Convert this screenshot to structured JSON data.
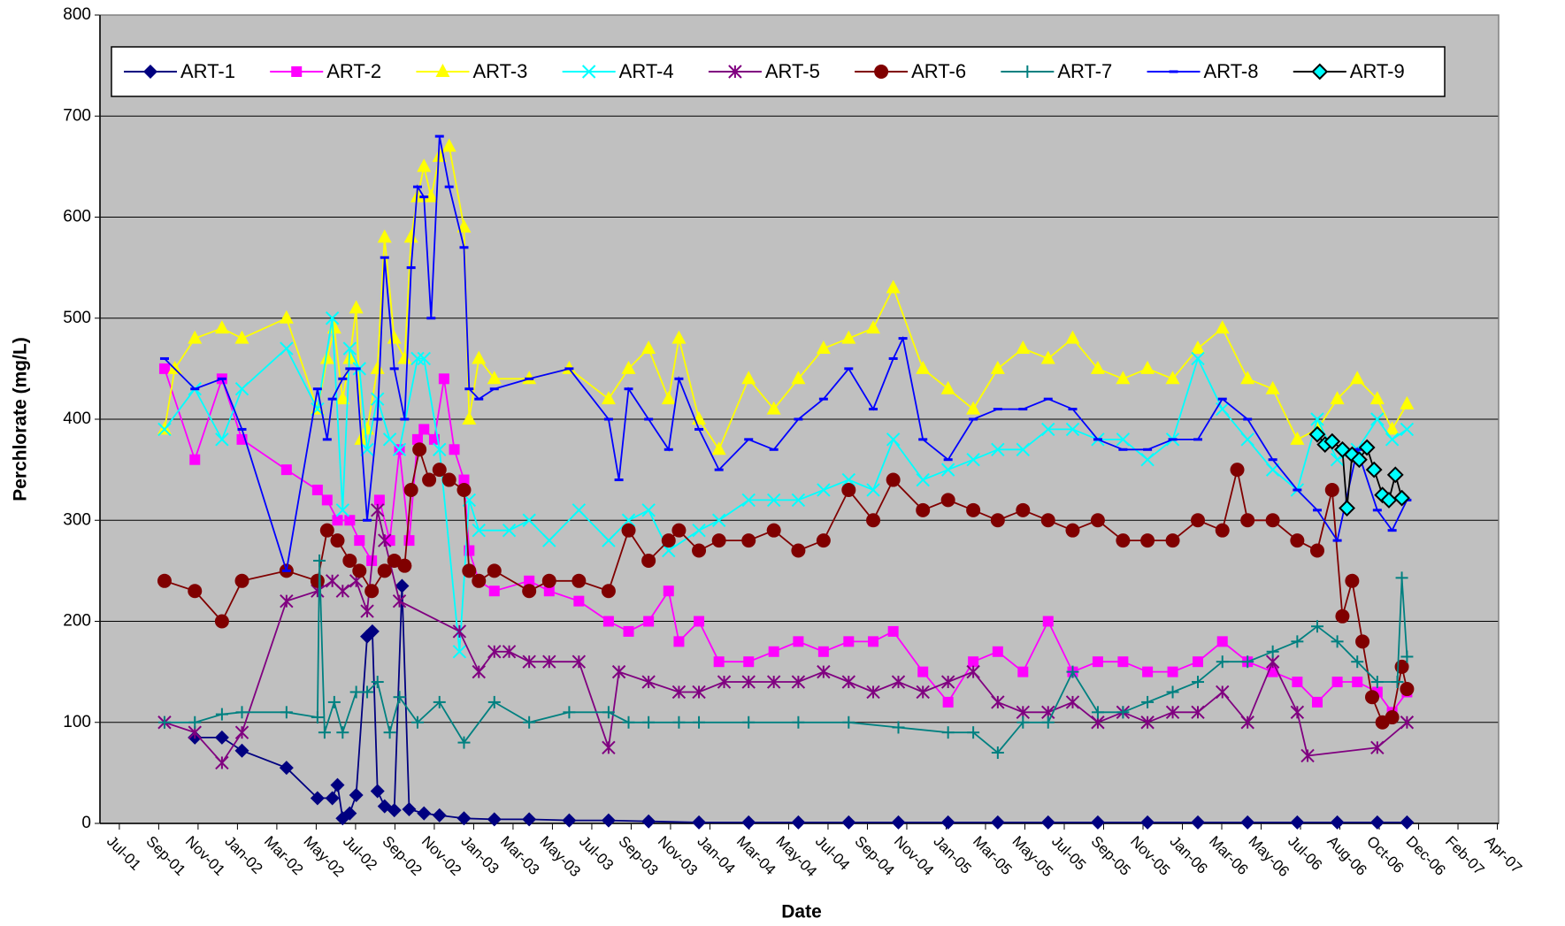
{
  "chart_data": {
    "type": "line",
    "x_label": "Date",
    "y_label": "Perchlorate (mg/L)",
    "ylim": [
      0,
      800
    ],
    "yticks": [
      0,
      100,
      200,
      300,
      400,
      500,
      600,
      700,
      800
    ],
    "xlim": [
      37043,
      39210
    ],
    "xticks": [
      {
        "value": 37073,
        "label": "Jul-01"
      },
      {
        "value": 37134,
        "label": "Sep-01"
      },
      {
        "value": 37195,
        "label": "Nov-01"
      },
      {
        "value": 37256,
        "label": "Jan-02"
      },
      {
        "value": 37317,
        "label": "Mar-02"
      },
      {
        "value": 37378,
        "label": "May-02"
      },
      {
        "value": 37439,
        "label": "Jul-02"
      },
      {
        "value": 37500,
        "label": "Sep-02"
      },
      {
        "value": 37561,
        "label": "Nov-02"
      },
      {
        "value": 37622,
        "label": "Jan-03"
      },
      {
        "value": 37683,
        "label": "Mar-03"
      },
      {
        "value": 37744,
        "label": "May-03"
      },
      {
        "value": 37805,
        "label": "Jul-03"
      },
      {
        "value": 37866,
        "label": "Sep-03"
      },
      {
        "value": 37927,
        "label": "Nov-03"
      },
      {
        "value": 37988,
        "label": "Jan-04"
      },
      {
        "value": 38049,
        "label": "Mar-04"
      },
      {
        "value": 38110,
        "label": "May-04"
      },
      {
        "value": 38171,
        "label": "Jul-04"
      },
      {
        "value": 38232,
        "label": "Sep-04"
      },
      {
        "value": 38293,
        "label": "Nov-04"
      },
      {
        "value": 38354,
        "label": "Jan-05"
      },
      {
        "value": 38415,
        "label": "Mar-05"
      },
      {
        "value": 38476,
        "label": "May-05"
      },
      {
        "value": 38537,
        "label": "Jul-05"
      },
      {
        "value": 38598,
        "label": "Sep-05"
      },
      {
        "value": 38659,
        "label": "Nov-05"
      },
      {
        "value": 38720,
        "label": "Jan-06"
      },
      {
        "value": 38781,
        "label": "Mar-06"
      },
      {
        "value": 38842,
        "label": "May-06"
      },
      {
        "value": 38903,
        "label": "Jul-06"
      },
      {
        "value": 38964,
        "label": "Aug-06"
      },
      {
        "value": 39025,
        "label": "Oct-06"
      },
      {
        "value": 39086,
        "label": "Dec-06"
      },
      {
        "value": 39147,
        "label": "Feb-07"
      },
      {
        "value": 39208,
        "label": "Apr-07"
      }
    ],
    "grid": true,
    "legend": "top",
    "plot_background": "#c0c0c0",
    "series": [
      {
        "name": "ART-1",
        "color": "#000080",
        "marker": "diamond",
        "x": [
          37190,
          37232,
          37263,
          37332,
          37380,
          37403,
          37411,
          37419,
          37430,
          37440,
          37457,
          37465,
          37473,
          37484,
          37499,
          37511,
          37522,
          37545,
          37569,
          37607,
          37654,
          37708,
          37770,
          37831,
          37893,
          37971,
          38048,
          38125,
          38203,
          38280,
          38357,
          38434,
          38512,
          38589,
          38666,
          38744,
          38821,
          38898,
          38960,
          39022,
          39068
        ],
        "values": [
          85,
          85,
          72,
          55,
          25,
          25,
          38,
          5,
          10,
          28,
          185,
          190,
          32,
          17,
          13,
          235,
          14,
          10,
          8,
          5,
          4,
          4,
          3,
          3,
          2,
          1,
          1,
          1,
          1,
          1,
          1,
          1,
          1,
          1,
          1,
          1,
          1,
          1,
          1,
          1,
          1
        ]
      },
      {
        "name": "ART-2",
        "color": "#ff00ff",
        "marker": "square",
        "x": [
          37143,
          37190,
          37232,
          37263,
          37332,
          37380,
          37395,
          37411,
          37430,
          37445,
          37464,
          37476,
          37492,
          37507,
          37522,
          37535,
          37545,
          37561,
          37576,
          37592,
          37607,
          37615,
          37630,
          37654,
          37708,
          37739,
          37785,
          37831,
          37862,
          37893,
          37924,
          37940,
          37971,
          38002,
          38048,
          38087,
          38125,
          38164,
          38203,
          38241,
          38272,
          38318,
          38357,
          38396,
          38434,
          38473,
          38512,
          38550,
          38589,
          38628,
          38666,
          38705,
          38744,
          38782,
          38821,
          38860,
          38898,
          38929,
          38960,
          38991,
          39022,
          39045,
          39068
        ],
        "values": [
          450,
          360,
          440,
          380,
          350,
          330,
          320,
          300,
          300,
          280,
          260,
          320,
          280,
          370,
          280,
          380,
          390,
          380,
          440,
          370,
          340,
          270,
          240,
          230,
          240,
          230,
          220,
          200,
          190,
          200,
          230,
          180,
          200,
          160,
          160,
          170,
          180,
          170,
          180,
          180,
          190,
          150,
          120,
          160,
          170,
          150,
          200,
          150,
          160,
          160,
          150,
          150,
          160,
          180,
          160,
          150,
          140,
          120,
          140,
          140,
          130,
          110,
          130
        ]
      },
      {
        "name": "ART-3",
        "color": "#ffff00",
        "marker": "triangle",
        "x": [
          37143,
          37159,
          37190,
          37232,
          37263,
          37332,
          37380,
          37395,
          37406,
          37419,
          37430,
          37440,
          37448,
          37457,
          37473,
          37484,
          37499,
          37515,
          37525,
          37535,
          37545,
          37556,
          37569,
          37584,
          37607,
          37615,
          37630,
          37654,
          37708,
          37770,
          37831,
          37862,
          37893,
          37924,
          37940,
          37971,
          38002,
          38048,
          38087,
          38125,
          38164,
          38203,
          38241,
          38272,
          38318,
          38357,
          38396,
          38434,
          38473,
          38512,
          38550,
          38589,
          38628,
          38666,
          38705,
          38744,
          38782,
          38821,
          38860,
          38898,
          38929,
          38960,
          38991,
          39022,
          39045,
          39068
        ],
        "values": [
          390,
          450,
          480,
          490,
          480,
          500,
          410,
          460,
          490,
          420,
          460,
          510,
          380,
          390,
          450,
          580,
          480,
          460,
          580,
          620,
          650,
          620,
          660,
          670,
          590,
          400,
          460,
          440,
          440,
          450,
          420,
          450,
          470,
          420,
          480,
          400,
          370,
          440,
          410,
          440,
          470,
          480,
          490,
          530,
          450,
          430,
          410,
          450,
          470,
          460,
          480,
          450,
          440,
          450,
          440,
          470,
          490,
          440,
          430,
          380,
          390,
          420,
          440,
          420,
          390,
          415
        ]
      },
      {
        "name": "ART-4",
        "color": "#00ffff",
        "marker": "x",
        "x": [
          37143,
          37190,
          37232,
          37263,
          37332,
          37380,
          37403,
          37419,
          37430,
          37445,
          37457,
          37473,
          37492,
          37507,
          37535,
          37545,
          37569,
          37600,
          37615,
          37630,
          37677,
          37708,
          37739,
          37785,
          37831,
          37862,
          37893,
          37924,
          37971,
          38002,
          38048,
          38087,
          38125,
          38164,
          38203,
          38241,
          38272,
          38318,
          38357,
          38396,
          38434,
          38473,
          38512,
          38550,
          38589,
          38628,
          38666,
          38705,
          38744,
          38782,
          38821,
          38860,
          38898,
          38929,
          38960,
          38991,
          39022,
          39045,
          39068
        ],
        "values": [
          390,
          430,
          380,
          430,
          470,
          410,
          500,
          310,
          470,
          450,
          370,
          420,
          380,
          370,
          460,
          460,
          370,
          170,
          320,
          290,
          290,
          300,
          280,
          310,
          280,
          300,
          310,
          270,
          290,
          300,
          320,
          320,
          320,
          330,
          340,
          330,
          380,
          340,
          350,
          360,
          370,
          370,
          390,
          390,
          380,
          380,
          360,
          380,
          460,
          410,
          380,
          350,
          330,
          400,
          360,
          370,
          400,
          380,
          390
        ]
      },
      {
        "name": "ART-5",
        "color": "#800080",
        "marker": "asterisk",
        "x": [
          37143,
          37190,
          37232,
          37263,
          37332,
          37380,
          37403,
          37419,
          37440,
          37457,
          37473,
          37484,
          37507,
          37600,
          37630,
          37654,
          37677,
          37708,
          37739,
          37785,
          37831,
          37847,
          37893,
          37940,
          37971,
          38010,
          38048,
          38087,
          38125,
          38164,
          38203,
          38241,
          38280,
          38318,
          38357,
          38396,
          38434,
          38473,
          38512,
          38550,
          38589,
          38628,
          38666,
          38705,
          38744,
          38782,
          38821,
          38860,
          38898,
          38914,
          39022,
          39068
        ],
        "values": [
          100,
          90,
          60,
          90,
          220,
          230,
          240,
          230,
          240,
          210,
          310,
          280,
          220,
          190,
          150,
          170,
          170,
          160,
          160,
          160,
          75,
          150,
          140,
          130,
          130,
          140,
          140,
          140,
          140,
          150,
          140,
          130,
          140,
          130,
          140,
          150,
          120,
          110,
          110,
          120,
          100,
          110,
          100,
          110,
          110,
          130,
          100,
          160,
          110,
          67,
          75,
          100
        ]
      },
      {
        "name": "ART-6",
        "color": "#800000",
        "marker": "circle",
        "x": [
          37143,
          37190,
          37232,
          37263,
          37332,
          37380,
          37395,
          37411,
          37430,
          37445,
          37464,
          37484,
          37499,
          37515,
          37525,
          37538,
          37553,
          37569,
          37584,
          37607,
          37615,
          37630,
          37654,
          37708,
          37739,
          37785,
          37831,
          37862,
          37893,
          37924,
          37940,
          37971,
          38002,
          38048,
          38087,
          38125,
          38164,
          38203,
          38241,
          38272,
          38318,
          38357,
          38396,
          38434,
          38473,
          38512,
          38550,
          38589,
          38628,
          38666,
          38705,
          38744,
          38782,
          38805,
          38821,
          38860,
          38898,
          38929,
          38952,
          38968,
          38983,
          38999,
          39014,
          39030,
          39045,
          39060,
          39068
        ],
        "values": [
          240,
          230,
          200,
          240,
          250,
          240,
          290,
          280,
          260,
          250,
          230,
          250,
          260,
          255,
          330,
          370,
          340,
          350,
          340,
          330,
          250,
          240,
          250,
          230,
          240,
          240,
          230,
          290,
          260,
          280,
          290,
          270,
          280,
          280,
          290,
          270,
          280,
          330,
          300,
          340,
          310,
          320,
          310,
          300,
          310,
          300,
          290,
          300,
          280,
          280,
          280,
          300,
          290,
          350,
          300,
          300,
          280,
          270,
          330,
          205,
          240,
          180,
          125,
          100,
          105,
          155,
          133
        ]
      },
      {
        "name": "ART-7",
        "color": "#008080",
        "marker": "plus",
        "x": [
          37143,
          37190,
          37232,
          37263,
          37332,
          37380,
          37383,
          37391,
          37406,
          37419,
          37440,
          37457,
          37473,
          37492,
          37507,
          37535,
          37569,
          37607,
          37654,
          37708,
          37770,
          37831,
          37862,
          37893,
          37940,
          37971,
          38048,
          38125,
          38203,
          38280,
          38357,
          38396,
          38434,
          38473,
          38512,
          38550,
          38589,
          38628,
          38666,
          38705,
          38744,
          38782,
          38821,
          38860,
          38898,
          38929,
          38960,
          38991,
          39022,
          39053,
          39060,
          39068
        ],
        "values": [
          100,
          100,
          108,
          110,
          110,
          105,
          260,
          90,
          120,
          90,
          130,
          130,
          140,
          90,
          125,
          100,
          120,
          80,
          120,
          100,
          110,
          110,
          100,
          100,
          100,
          100,
          100,
          100,
          100,
          95,
          90,
          90,
          70,
          100,
          100,
          150,
          110,
          110,
          120,
          130,
          140,
          160,
          160,
          170,
          180,
          195,
          180,
          160,
          140,
          140,
          243,
          165
        ]
      },
      {
        "name": "ART-8",
        "color": "#0000ff",
        "marker": "dash",
        "x": [
          37143,
          37190,
          37232,
          37263,
          37332,
          37380,
          37395,
          37403,
          37419,
          37430,
          37440,
          37457,
          37473,
          37484,
          37499,
          37515,
          37525,
          37535,
          37545,
          37556,
          37569,
          37584,
          37607,
          37615,
          37630,
          37654,
          37708,
          37770,
          37831,
          37847,
          37862,
          37893,
          37924,
          37940,
          37971,
          38002,
          38048,
          38087,
          38125,
          38164,
          38203,
          38241,
          38272,
          38287,
          38318,
          38357,
          38396,
          38434,
          38473,
          38512,
          38550,
          38589,
          38628,
          38666,
          38705,
          38744,
          38782,
          38821,
          38860,
          38898,
          38929,
          38960,
          38991,
          39022,
          39045,
          39068
        ],
        "values": [
          460,
          430,
          440,
          390,
          250,
          430,
          380,
          420,
          440,
          450,
          450,
          300,
          400,
          560,
          450,
          400,
          550,
          630,
          620,
          500,
          680,
          630,
          570,
          430,
          420,
          430,
          440,
          450,
          400,
          340,
          430,
          400,
          370,
          440,
          390,
          350,
          380,
          370,
          400,
          420,
          450,
          410,
          460,
          480,
          380,
          360,
          400,
          410,
          410,
          420,
          410,
          380,
          370,
          370,
          380,
          380,
          420,
          400,
          360,
          330,
          310,
          280,
          370,
          310,
          290,
          320
        ]
      },
      {
        "name": "ART-9",
        "color": "#000000",
        "marker": "diamond",
        "marker_fill": "#00ffff",
        "x": [
          38929,
          38941,
          38952,
          38968,
          38975,
          38983,
          38994,
          39006,
          39017,
          39030,
          39040,
          39050,
          39060
        ],
        "values": [
          385,
          375,
          378,
          370,
          312,
          365,
          360,
          372,
          350,
          325,
          320,
          345,
          322
        ]
      }
    ]
  }
}
